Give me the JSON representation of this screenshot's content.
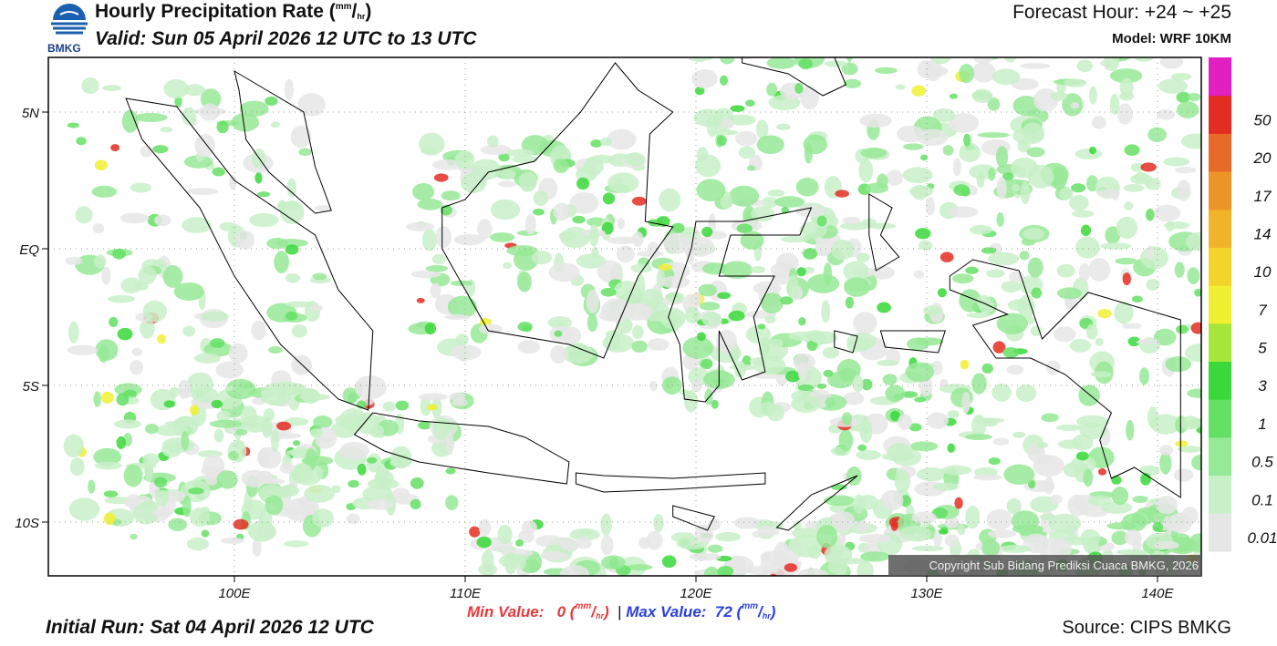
{
  "header": {
    "title": "Hourly Precipitation Rate",
    "unit_open": "(",
    "unit_num": "mm",
    "unit_sep": "/",
    "unit_den": "hr",
    "unit_close": ")",
    "valid": "Valid: Sun 05 April 2026 12 UTC to 13 UTC",
    "forecast_hour": "Forecast Hour: +24 ~ +25",
    "model": "Model: WRF 10KM",
    "logo": "BMKG"
  },
  "map": {
    "lat_labels": [
      "5N",
      "EQ",
      "5S",
      "10S"
    ],
    "lon_labels": [
      "100E",
      "110E",
      "120E",
      "130E",
      "140E"
    ],
    "copyright": "Copyright Sub Bidang Prediksi Cuaca BMKG, 2026"
  },
  "colorbar": {
    "levels": [
      "0.01",
      "0.1",
      "0.5",
      "1",
      "3",
      "5",
      "7",
      "10",
      "14",
      "17",
      "20",
      "50"
    ],
    "colors": [
      "#e6e6e6",
      "#c8f0c8",
      "#96e996",
      "#64e164",
      "#3ad83a",
      "#a6e63a",
      "#f0f032",
      "#f2d42a",
      "#efb42a",
      "#ec9428",
      "#e86a28",
      "#e42d22",
      "#e21fc0"
    ]
  },
  "footer": {
    "min_label": "Min Value:",
    "min_value": "0",
    "divider": "|",
    "max_label": "Max Value:",
    "max_value": "72",
    "initial_run": "Initial Run: Sat 04 April 2026 12 UTC",
    "source": "Source: CIPS BMKG"
  }
}
